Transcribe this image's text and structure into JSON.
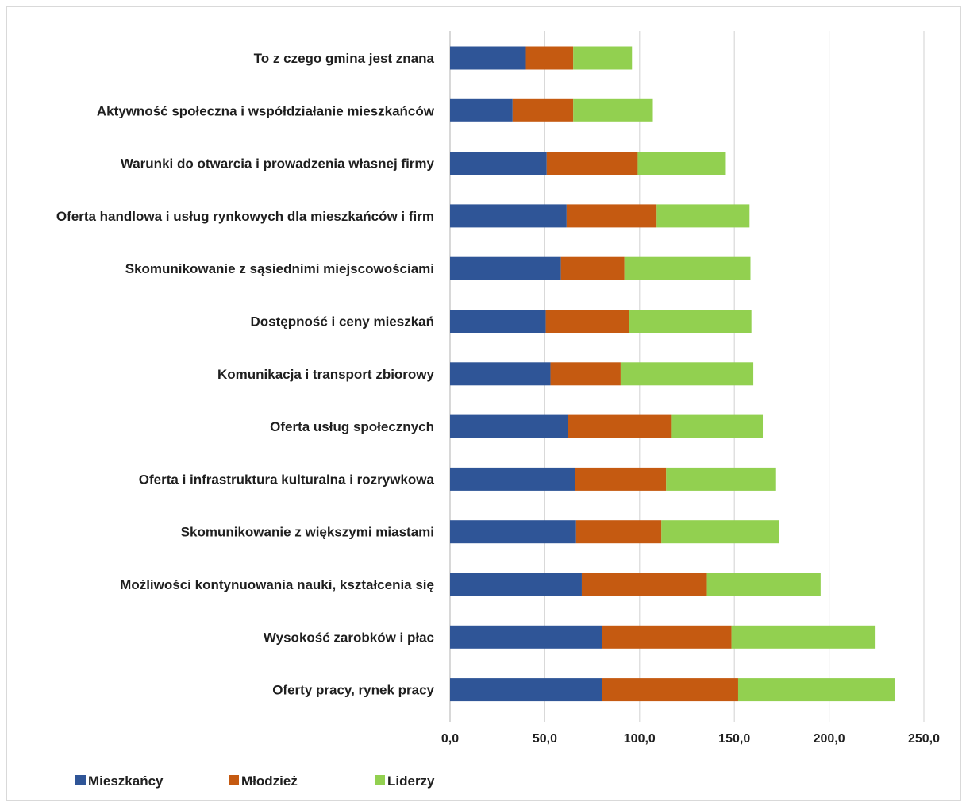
{
  "chart_data": {
    "type": "bar",
    "orientation": "horizontal",
    "stacked": true,
    "categories": [
      "To z czego gmina jest znana",
      "Aktywność społeczna i współdziałanie mieszkańców",
      "Warunki do otwarcia i prowadzenia własnej firmy",
      "Oferta handlowa i usług rynkowych dla mieszkańców i firm",
      "Skomunikowanie z sąsiednimi miejscowościami",
      "Dostępność i ceny mieszkań",
      "Komunikacja i transport zbiorowy",
      "Oferta usług społecznych",
      "Oferta i infrastruktura kulturalna i rozrywkowa",
      "Skomunikowanie z większymi miastami",
      "Możliwości kontynuowania nauki, kształcenia się",
      "Wysokość zarobków i płac",
      "Oferty pracy, rynek pracy"
    ],
    "series": [
      {
        "name": "Mieszkańcy",
        "color": "#2f5597",
        "values": [
          40,
          33,
          51,
          61.5,
          58.5,
          50.5,
          53,
          62,
          66,
          66.5,
          69.5,
          80,
          80
        ]
      },
      {
        "name": "Młodzież",
        "color": "#c55a11",
        "values": [
          25,
          32,
          48,
          47.5,
          33.5,
          44,
          37,
          55,
          48,
          45,
          66,
          68.5,
          72
        ]
      },
      {
        "name": "Liderzy",
        "color": "#92d050",
        "values": [
          31,
          42,
          46.5,
          49,
          66.5,
          64.5,
          70,
          48,
          58,
          62,
          60,
          76,
          82.5
        ]
      }
    ],
    "xlim": [
      0,
      250
    ],
    "xticks": [
      "0,0",
      "50,0",
      "100,0",
      "150,0",
      "200,0",
      "250,0"
    ],
    "grid": true,
    "legend_position": "bottom-left",
    "title": "",
    "xlabel": "",
    "ylabel": ""
  }
}
